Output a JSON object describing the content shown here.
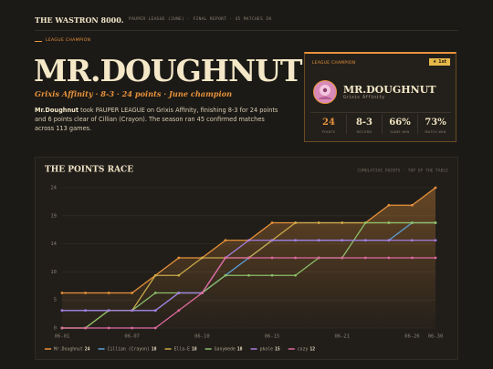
{
  "header": {
    "brand": "THE WASTRON 8000.",
    "meta": "PAUPER LEAGUE (JUNE) · FINAL REPORT · 45 MATCHES IN"
  },
  "hero": {
    "eyebrow": "LEAGUE CHAMPION",
    "name": "MR.DOUGHNUT",
    "subtitle": "Grixis Affinity · 8-3 · 24 points · June champion",
    "lead": "Mr.Doughnut",
    "paragraph": "took PAUPER LEAGUE on Grixis Affinity, finishing 8-3 for 24 points and 6 points clear of Cillian (Crayon). The season ran 45 confirmed matches across 113 games."
  },
  "card": {
    "tag": "LEAGUE CHAMPION",
    "badge": "★ 1st",
    "name": "MR.DOUGHNUT",
    "deck": "Grixis Affinity",
    "stats": [
      {
        "value": "24",
        "label": "POINTS"
      },
      {
        "value": "8-3",
        "label": "RECORD"
      },
      {
        "value": "66%",
        "label": "GAME WIN"
      },
      {
        "value": "73%",
        "label": "MATCH WIN"
      }
    ]
  },
  "chart_data": {
    "type": "line",
    "title": "THE POINTS RACE",
    "subtitle": "CUMULATIVE POINTS · TOP OF THE TABLE",
    "categories": [
      "06-01",
      null,
      null,
      "06-07",
      null,
      null,
      "06-10",
      null,
      null,
      "06-15",
      null,
      null,
      "06-21",
      null,
      null,
      "06-26",
      "06-30"
    ],
    "ylim": [
      0,
      24
    ],
    "yticks": [
      0,
      {
        "value": 4.8,
        "label": "5"
      },
      {
        "value": 9.6,
        "label": "10"
      },
      {
        "value": 14.4,
        "label": "14"
      },
      {
        "value": 19.2,
        "label": "19"
      },
      24
    ],
    "grid": true,
    "series": [
      {
        "name": "Mr.Doughnut",
        "color": "#e8923a",
        "fill": true,
        "values": [
          6,
          6,
          6,
          6,
          9,
          12,
          12,
          15,
          15,
          18,
          18,
          18,
          18,
          18,
          21,
          21,
          24
        ]
      },
      {
        "name": "Cillian (Crayon)",
        "color": "#5aa0d8",
        "values": [
          3,
          3,
          3,
          3,
          3,
          6,
          6,
          9,
          12,
          15,
          15,
          15,
          15,
          15,
          15,
          18,
          18
        ]
      },
      {
        "name": "Ella-E",
        "color": "#c9a94a",
        "values": [
          0,
          0,
          3,
          3,
          9,
          9,
          12,
          12,
          12,
          15,
          18,
          18,
          18,
          18,
          18,
          18,
          18
        ]
      },
      {
        "name": "Ganymede",
        "color": "#8bbf6a",
        "values": [
          0,
          0,
          3,
          3,
          6,
          6,
          6,
          9,
          9,
          9,
          9,
          12,
          12,
          18,
          18,
          18,
          18
        ]
      },
      {
        "name": "pkole",
        "color": "#a77de0",
        "values": [
          3,
          3,
          3,
          3,
          3,
          6,
          6,
          12,
          15,
          15,
          15,
          15,
          15,
          15,
          15,
          15,
          15
        ]
      },
      {
        "name": "cozy",
        "color": "#e06aa0",
        "values": [
          0,
          0,
          0,
          0,
          0,
          3,
          6,
          12,
          12,
          12,
          12,
          12,
          12,
          12,
          12,
          12,
          12
        ]
      }
    ]
  }
}
